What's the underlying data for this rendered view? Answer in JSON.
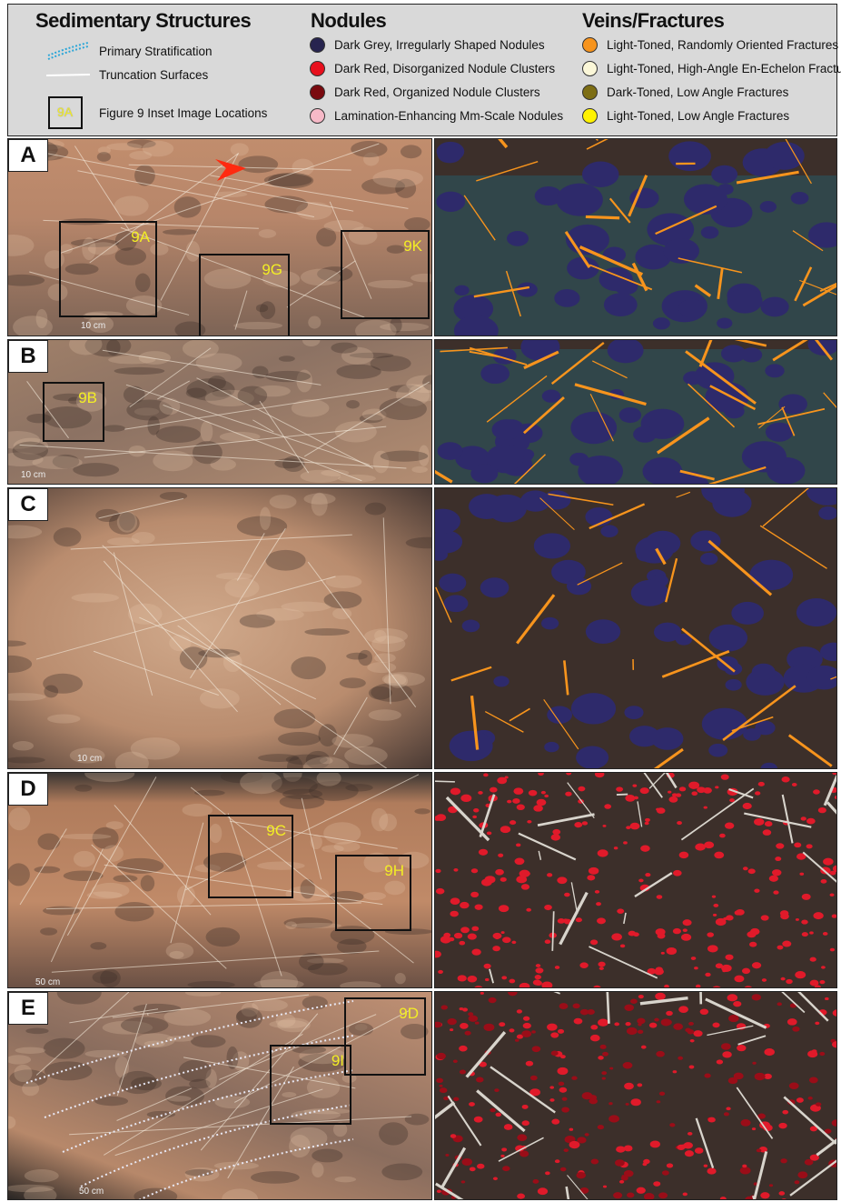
{
  "legend": {
    "sedimentary": {
      "title": "Sedimentary Structures",
      "primary": "Primary Stratification",
      "truncation": "Truncation Surfaces",
      "inset_box_label": "9A",
      "inset": "Figure 9 Inset Image Locations"
    },
    "nodules": {
      "title": "Nodules",
      "items": [
        {
          "label": "Dark Grey, Irregularly Shaped Nodules",
          "color": "#27244f"
        },
        {
          "label": "Dark Red, Disorganized Nodule Clusters",
          "color": "#e8101d"
        },
        {
          "label": "Dark Red, Organized Nodule Clusters",
          "color": "#7a0a0f"
        },
        {
          "label": "Lamination-Enhancing Mm-Scale Nodules",
          "color": "#f6b9c7"
        }
      ]
    },
    "veins": {
      "title": "Veins/Fractures",
      "items": [
        {
          "label": "Light-Toned, Randomly Oriented Fractures",
          "color": "#f7941d"
        },
        {
          "label": "Light-Toned, High-Angle En-Echelon Fractures",
          "color": "#fbf7d8"
        },
        {
          "label": "Dark-Toned, Low Angle Fractures",
          "color": "#7d6e14"
        },
        {
          "label": "Light-Toned, Low Angle Fractures",
          "color": "#fff200"
        }
      ]
    }
  },
  "panels": [
    {
      "letter": "A",
      "scale": "10 cm",
      "insets": [
        "9A",
        "9G",
        "9K"
      ]
    },
    {
      "letter": "B",
      "scale": "10 cm",
      "insets": [
        "9B"
      ]
    },
    {
      "letter": "C",
      "scale": "10 cm",
      "insets": []
    },
    {
      "letter": "D",
      "scale": "50 cm",
      "insets": [
        "9C",
        "9H"
      ]
    },
    {
      "letter": "E",
      "scale": "50 cm",
      "insets": [
        "9D",
        "9I"
      ]
    }
  ],
  "colors": {
    "rock": "#b98565",
    "map_bg": "#3c2f2a",
    "orange_vein": "#f7941d",
    "grey_nodule": "#2e2a6b",
    "red_nodule": "#e01a2a"
  }
}
